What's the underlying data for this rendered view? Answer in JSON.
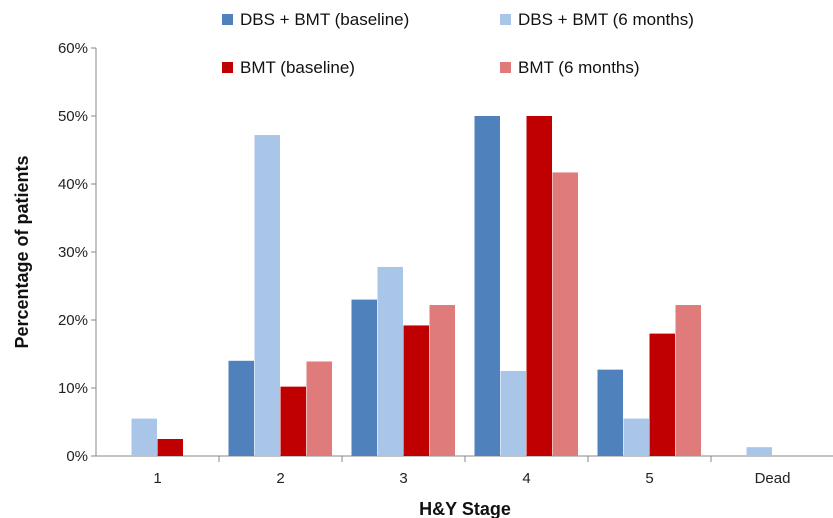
{
  "chart_data": {
    "type": "bar",
    "title": "",
    "xlabel": "H&Y Stage",
    "ylabel": "Percentage of patients",
    "categories": [
      "1",
      "2",
      "3",
      "4",
      "5",
      "Dead"
    ],
    "ylim": [
      0,
      60
    ],
    "yticks": [
      "0%",
      "10%",
      "20%",
      "30%",
      "40%",
      "50%",
      "60%"
    ],
    "grid": false,
    "legend_position": "top",
    "series": [
      {
        "name": "DBS + BMT (baseline)",
        "color": "#4f81bd",
        "values": [
          0,
          14,
          23,
          50,
          12.7,
          0
        ]
      },
      {
        "name": "DBS + BMT (6 months)",
        "color": "#a9c6e8",
        "values": [
          5.5,
          47.2,
          27.8,
          12.5,
          5.5,
          1.3
        ]
      },
      {
        "name": "BMT (baseline)",
        "color": "#c00000",
        "values": [
          2.5,
          10.2,
          19.2,
          50,
          18,
          0
        ]
      },
      {
        "name": "BMT (6 months)",
        "color": "#e07b7b",
        "values": [
          0,
          13.9,
          22.2,
          41.7,
          22.2,
          0
        ]
      }
    ]
  }
}
